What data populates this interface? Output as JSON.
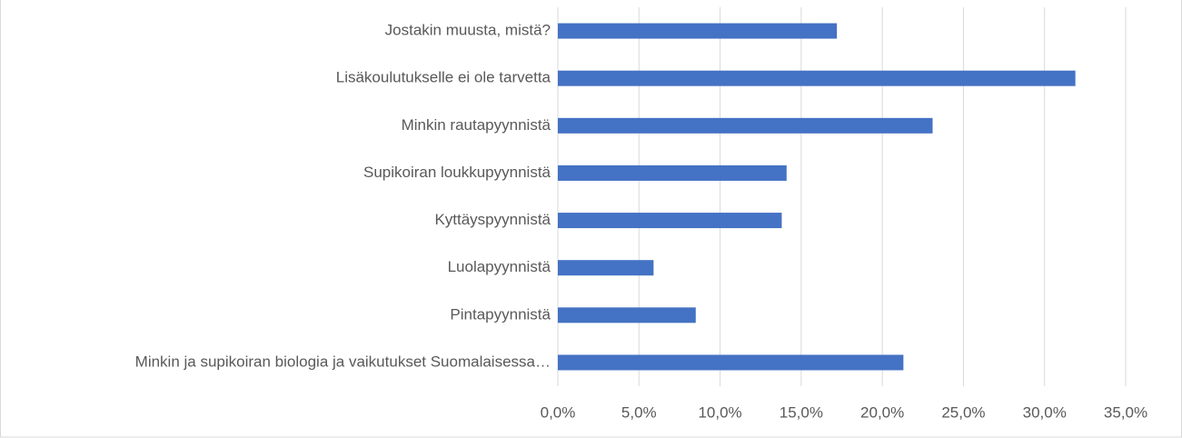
{
  "chart_data": {
    "type": "barh",
    "categories": [
      "Jostakin muusta, mistä?",
      "Lisäkoulutukselle ei ole tarvetta",
      "Minkin rautapyynnistä",
      "Supikoiran loukkupyynnistä",
      "Kyttäyspyynnistä",
      "Luolapyynnistä",
      "Pintapyynnistä",
      "Minkin ja supikoiran biologia ja vaikutukset Suomalaisessa…"
    ],
    "values": [
      17.2,
      31.9,
      23.1,
      14.1,
      13.8,
      5.9,
      8.5,
      21.3
    ],
    "color": "#4472c4",
    "xlim": [
      0,
      35
    ],
    "xticks": [
      {
        "value": 0,
        "label": "0,0%"
      },
      {
        "value": 5,
        "label": "5,0%"
      },
      {
        "value": 10,
        "label": "10,0%"
      },
      {
        "value": 15,
        "label": "15,0%"
      },
      {
        "value": 20,
        "label": "20,0%"
      },
      {
        "value": 25,
        "label": "25,0%"
      },
      {
        "value": 30,
        "label": "30,0%"
      },
      {
        "value": 35,
        "label": "35,0%"
      }
    ],
    "grid": true
  }
}
